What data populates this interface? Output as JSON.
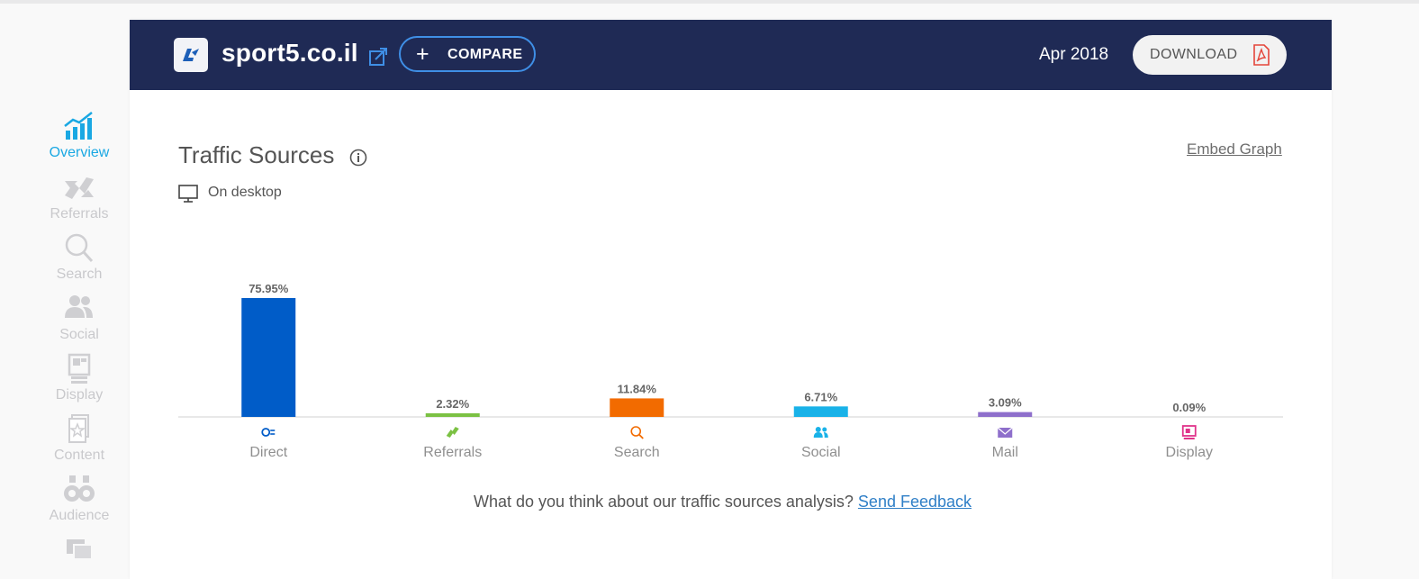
{
  "sidebar": {
    "items": [
      {
        "label": "Overview",
        "active": true
      },
      {
        "label": "Referrals",
        "active": false
      },
      {
        "label": "Search",
        "active": false
      },
      {
        "label": "Social",
        "active": false
      },
      {
        "label": "Display",
        "active": false
      },
      {
        "label": "Content",
        "active": false
      },
      {
        "label": "Audience",
        "active": false
      }
    ]
  },
  "header": {
    "site": "sport5.co.il",
    "compare_label": "COMPARE",
    "date": "Apr 2018",
    "download_label": "DOWNLOAD",
    "background": "#1f2a55",
    "accent": "#3f8fe6"
  },
  "section": {
    "title": "Traffic Sources",
    "embed_link": "Embed Graph",
    "device": "On desktop"
  },
  "chart_data": {
    "type": "bar",
    "categories": [
      "Direct",
      "Referrals",
      "Search",
      "Social",
      "Mail",
      "Display"
    ],
    "values": [
      75.95,
      2.32,
      11.84,
      6.71,
      3.09,
      0.09
    ],
    "value_labels": [
      "75.95%",
      "2.32%",
      "11.84%",
      "6.71%",
      "3.09%",
      "0.09%"
    ],
    "colors": [
      "#005cc8",
      "#7bc143",
      "#f26b00",
      "#19b2e8",
      "#8e6fcb",
      "#e0338a"
    ],
    "icons": [
      "direct-icon",
      "referrals-icon",
      "search-icon",
      "social-icon",
      "mail-icon",
      "display-icon"
    ],
    "ylim": [
      0,
      100
    ]
  },
  "feedback": {
    "question": "What do you think about our traffic sources analysis?",
    "link": "Send Feedback"
  }
}
